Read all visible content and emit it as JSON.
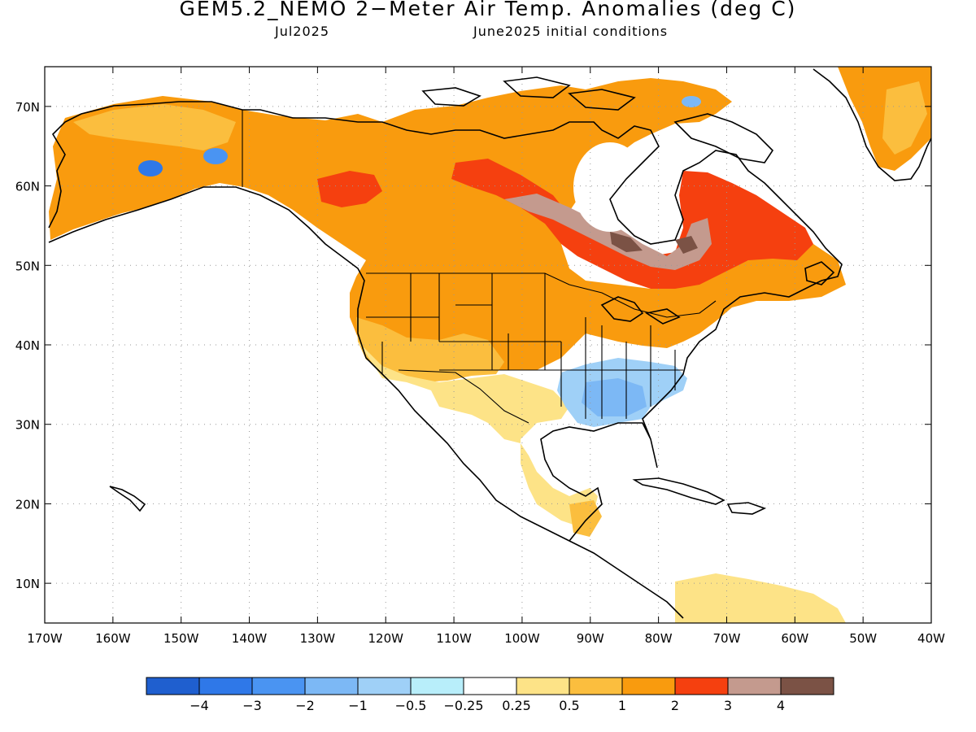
{
  "title": "GEM5.2_NEMO 2−Meter Air Temp. Anomalies (deg C)",
  "subtitle_left": "Jul2025",
  "subtitle_right": "June2025 initial conditions",
  "map": {
    "lat_labels": [
      "70N",
      "60N",
      "50N",
      "40N",
      "30N",
      "20N",
      "10N"
    ],
    "lon_labels": [
      "170W",
      "160W",
      "150W",
      "140W",
      "130W",
      "120W",
      "110W",
      "100W",
      "90W",
      "80W",
      "70W",
      "60W",
      "50W",
      "40W"
    ],
    "projection": "cylindrical equidistant",
    "extent": {
      "lon_min": -170,
      "lon_max": -40,
      "lat_min": 5,
      "lat_max": 75
    },
    "grid": "dotted"
  },
  "legend": {
    "colors": [
      "#1f5fcf",
      "#2f78e8",
      "#4a94f2",
      "#7cb8f5",
      "#9fd0f7",
      "#b8eefa",
      "#ffffff",
      "#fde387",
      "#fbbe3e",
      "#f99b0e",
      "#f5400f",
      "#c49a8e",
      "#7b5245"
    ],
    "labels": [
      "−4",
      "−3",
      "−2",
      "−1",
      "−0.5",
      "−0.25",
      "0.25",
      "0.5",
      "1",
      "2",
      "3",
      "4"
    ]
  }
}
